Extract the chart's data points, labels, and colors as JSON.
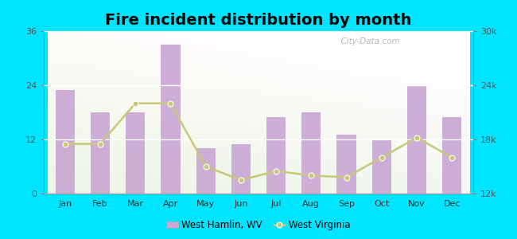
{
  "months": [
    "Jan",
    "Feb",
    "Mar",
    "Apr",
    "May",
    "Jun",
    "Jul",
    "Aug",
    "Sep",
    "Oct",
    "Nov",
    "Dec"
  ],
  "bar_values": [
    23,
    18,
    18,
    33,
    10,
    11,
    17,
    18,
    13,
    12,
    24,
    17
  ],
  "line_values": [
    17500,
    17500,
    22000,
    22000,
    15000,
    13500,
    14500,
    14000,
    13800,
    16000,
    18200,
    16000
  ],
  "bar_color": "#c9a8d4",
  "line_color": "#c8c87a",
  "title": "Fire incident distribution by month",
  "title_fontsize": 14,
  "left_ylim": [
    0,
    36
  ],
  "left_yticks": [
    0,
    12,
    24,
    36
  ],
  "right_ylim": [
    12000,
    30000
  ],
  "right_yticks": [
    12000,
    18000,
    24000,
    30000
  ],
  "right_yticklabels": [
    "12k",
    "18k",
    "24k",
    "30k"
  ],
  "background_outer": "#00e5ff",
  "legend_bar_label": "West Hamlin, WV",
  "legend_line_label": "West Virginia",
  "watermark": "  City-Data.com"
}
